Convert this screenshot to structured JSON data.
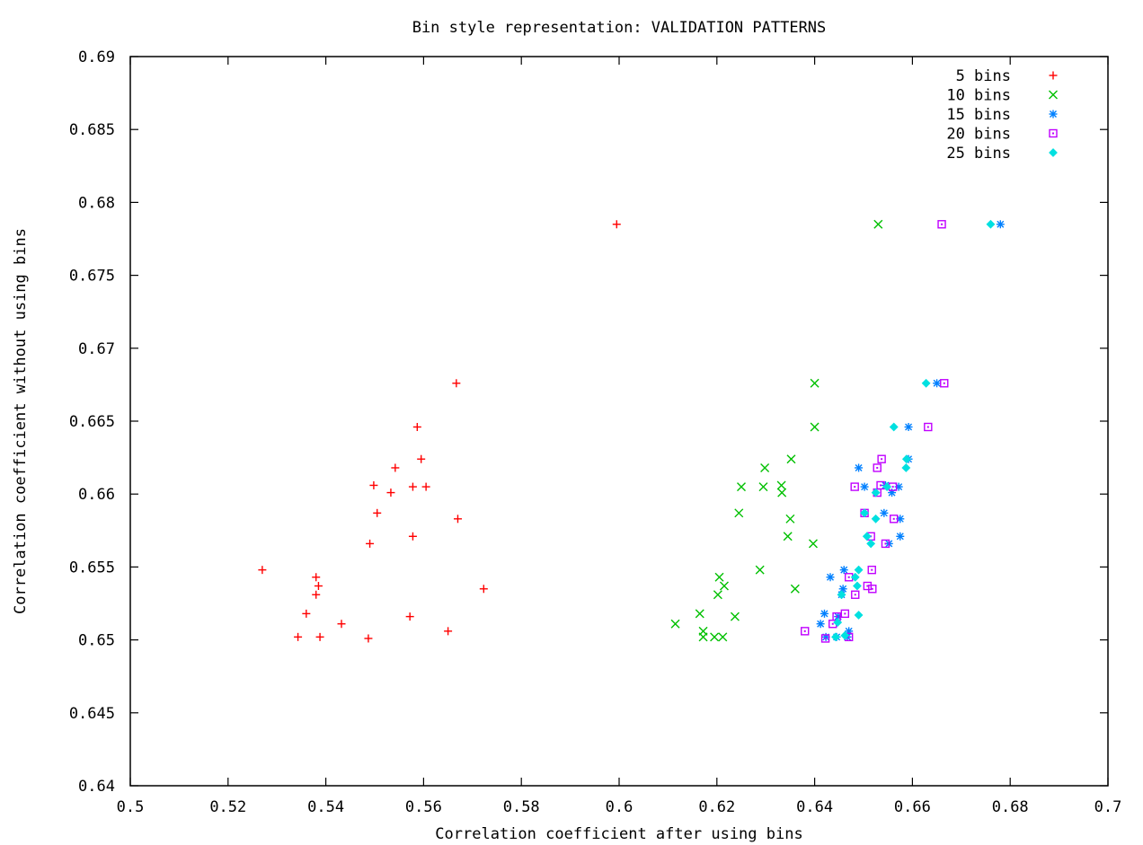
{
  "chart_data": {
    "type": "scatter",
    "title": "Bin style representation: VALIDATION PATTERNS",
    "xlabel": "Correlation coefficient after using bins",
    "ylabel": "Correlation coefficient without using bins",
    "xlim": [
      0.5,
      0.7
    ],
    "ylim": [
      0.64,
      0.69
    ],
    "xticks": [
      0.5,
      0.52,
      0.54,
      0.56,
      0.58,
      0.6,
      0.62,
      0.64,
      0.66,
      0.68,
      0.7
    ],
    "xtick_labels": [
      "0.5",
      "0.52",
      "0.54",
      "0.56",
      "0.58",
      "0.6",
      "0.62",
      "0.64",
      "0.66",
      "0.68",
      "0.7"
    ],
    "yticks": [
      0.64,
      0.645,
      0.65,
      0.655,
      0.66,
      0.665,
      0.67,
      0.675,
      0.68,
      0.685,
      0.69
    ],
    "ytick_labels": [
      "0.64",
      "0.645",
      "0.65",
      "0.655",
      "0.66",
      "0.665",
      "0.67",
      "0.675",
      "0.68",
      "0.685",
      "0.69"
    ],
    "grid": false,
    "legend_position": "top-right",
    "series": [
      {
        "name": "5 bins",
        "marker": "plus",
        "color": "#ff0000",
        "points": [
          [
            0.5995,
            0.6785
          ],
          [
            0.5667,
            0.6676
          ],
          [
            0.5587,
            0.6646
          ],
          [
            0.5542,
            0.6618
          ],
          [
            0.5595,
            0.6624
          ],
          [
            0.5498,
            0.6606
          ],
          [
            0.5533,
            0.6601
          ],
          [
            0.5578,
            0.6605
          ],
          [
            0.5605,
            0.6605
          ],
          [
            0.5505,
            0.6587
          ],
          [
            0.567,
            0.6583
          ],
          [
            0.5578,
            0.6571
          ],
          [
            0.549,
            0.6566
          ],
          [
            0.527,
            0.6548
          ],
          [
            0.538,
            0.6543
          ],
          [
            0.5385,
            0.6537
          ],
          [
            0.538,
            0.6531
          ],
          [
            0.5723,
            0.6535
          ],
          [
            0.536,
            0.6518
          ],
          [
            0.5572,
            0.6516
          ],
          [
            0.5432,
            0.6511
          ],
          [
            0.565,
            0.6506
          ],
          [
            0.5343,
            0.6502
          ],
          [
            0.5388,
            0.6502
          ],
          [
            0.5487,
            0.6501
          ]
        ]
      },
      {
        "name": "10 bins",
        "marker": "cross",
        "color": "#00c000",
        "points": [
          [
            0.653,
            0.6785
          ],
          [
            0.64,
            0.6676
          ],
          [
            0.64,
            0.6646
          ],
          [
            0.6352,
            0.6624
          ],
          [
            0.6298,
            0.6618
          ],
          [
            0.625,
            0.6605
          ],
          [
            0.6295,
            0.6605
          ],
          [
            0.6332,
            0.6606
          ],
          [
            0.6333,
            0.6601
          ],
          [
            0.6245,
            0.6587
          ],
          [
            0.635,
            0.6583
          ],
          [
            0.6345,
            0.6571
          ],
          [
            0.6397,
            0.6566
          ],
          [
            0.6288,
            0.6548
          ],
          [
            0.6205,
            0.6543
          ],
          [
            0.6215,
            0.6537
          ],
          [
            0.6202,
            0.6531
          ],
          [
            0.636,
            0.6535
          ],
          [
            0.6165,
            0.6518
          ],
          [
            0.6237,
            0.6516
          ],
          [
            0.6115,
            0.6511
          ],
          [
            0.6172,
            0.6506
          ],
          [
            0.6172,
            0.6502
          ],
          [
            0.6195,
            0.6502
          ],
          [
            0.6212,
            0.6502
          ]
        ]
      },
      {
        "name": "15 bins",
        "marker": "star",
        "color": "#0080ff",
        "points": [
          [
            0.678,
            0.6785
          ],
          [
            0.665,
            0.6676
          ],
          [
            0.6592,
            0.6646
          ],
          [
            0.6592,
            0.6624
          ],
          [
            0.649,
            0.6618
          ],
          [
            0.6502,
            0.6605
          ],
          [
            0.6545,
            0.6606
          ],
          [
            0.6558,
            0.6601
          ],
          [
            0.6572,
            0.6605
          ],
          [
            0.6542,
            0.6587
          ],
          [
            0.6575,
            0.6583
          ],
          [
            0.6575,
            0.6571
          ],
          [
            0.6552,
            0.6566
          ],
          [
            0.646,
            0.6548
          ],
          [
            0.6432,
            0.6543
          ],
          [
            0.6458,
            0.6535
          ],
          [
            0.6455,
            0.6531
          ],
          [
            0.642,
            0.6518
          ],
          [
            0.6448,
            0.6516
          ],
          [
            0.6412,
            0.6511
          ],
          [
            0.647,
            0.6506
          ],
          [
            0.6423,
            0.6502
          ],
          [
            0.6445,
            0.6502
          ],
          [
            0.6467,
            0.6502
          ]
        ]
      },
      {
        "name": "20 bins",
        "marker": "square",
        "color": "#c000ff",
        "points": [
          [
            0.666,
            0.6785
          ],
          [
            0.6665,
            0.6676
          ],
          [
            0.6632,
            0.6646
          ],
          [
            0.6537,
            0.6624
          ],
          [
            0.6528,
            0.6618
          ],
          [
            0.6482,
            0.6605
          ],
          [
            0.6535,
            0.6606
          ],
          [
            0.6528,
            0.6601
          ],
          [
            0.656,
            0.6605
          ],
          [
            0.6502,
            0.6587
          ],
          [
            0.6562,
            0.6583
          ],
          [
            0.6515,
            0.6571
          ],
          [
            0.6545,
            0.6566
          ],
          [
            0.6517,
            0.6548
          ],
          [
            0.647,
            0.6543
          ],
          [
            0.6508,
            0.6537
          ],
          [
            0.6518,
            0.6535
          ],
          [
            0.6483,
            0.6531
          ],
          [
            0.6462,
            0.6518
          ],
          [
            0.6445,
            0.6516
          ],
          [
            0.6437,
            0.6511
          ],
          [
            0.638,
            0.6506
          ],
          [
            0.647,
            0.6502
          ],
          [
            0.6422,
            0.6501
          ]
        ]
      },
      {
        "name": "25 bins",
        "marker": "diamond",
        "color": "#00e0e0",
        "points": [
          [
            0.676,
            0.6785
          ],
          [
            0.6628,
            0.6676
          ],
          [
            0.6562,
            0.6646
          ],
          [
            0.6588,
            0.6624
          ],
          [
            0.6587,
            0.6618
          ],
          [
            0.6548,
            0.6605
          ],
          [
            0.6525,
            0.6601
          ],
          [
            0.6502,
            0.6587
          ],
          [
            0.6525,
            0.6583
          ],
          [
            0.6507,
            0.6571
          ],
          [
            0.6515,
            0.6566
          ],
          [
            0.649,
            0.6548
          ],
          [
            0.6483,
            0.6543
          ],
          [
            0.6487,
            0.6537
          ],
          [
            0.6455,
            0.6531
          ],
          [
            0.649,
            0.6517
          ],
          [
            0.6447,
            0.6512
          ],
          [
            0.6443,
            0.6502
          ],
          [
            0.6462,
            0.6503
          ]
        ]
      }
    ]
  }
}
